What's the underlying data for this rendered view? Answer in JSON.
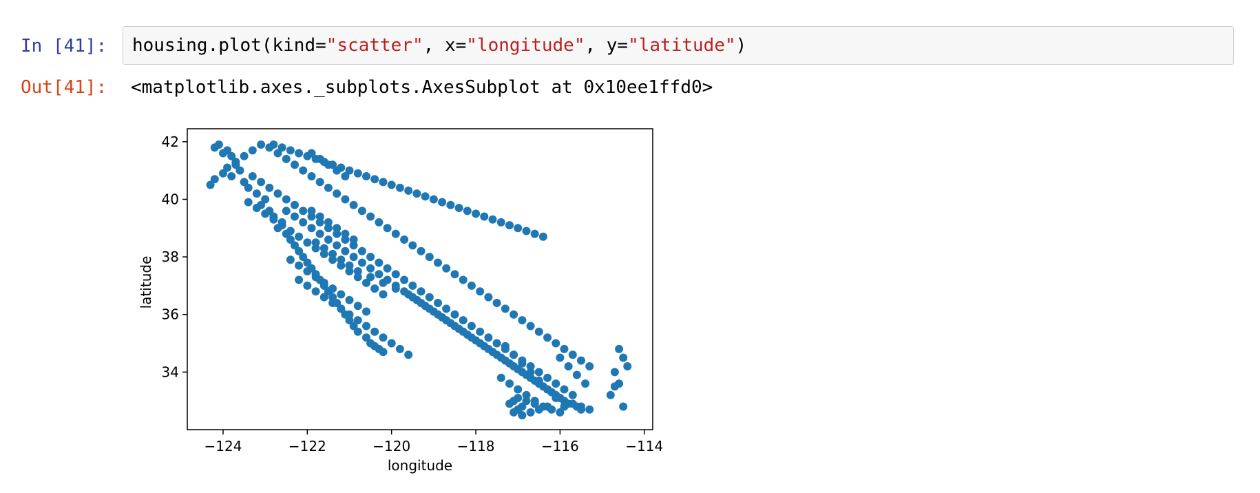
{
  "notebook": {
    "input_prompt": "In [41]:",
    "output_prompt": "Out[41]:",
    "code": {
      "p1": "housing.plot(kind=",
      "s1": "\"scatter\"",
      "p2": ", x=",
      "s2": "\"longitude\"",
      "p3": ", y=",
      "s3": "\"latitude\"",
      "p4": ")"
    },
    "output_text": "<matplotlib.axes._subplots.AxesSubplot at 0x10ee1ffd0>"
  },
  "colors": {
    "marker": "#1f77b4",
    "input_prompt": "#303f9f",
    "output_prompt": "#d84315",
    "string": "#ba2121"
  },
  "chart_data": {
    "type": "scatter",
    "title": "",
    "xlabel": "longitude",
    "ylabel": "latitude",
    "xlim": [
      -124.85,
      -113.8
    ],
    "ylim": [
      32.0,
      42.45
    ],
    "xticks": [
      -124,
      -122,
      -120,
      -118,
      -116,
      -114
    ],
    "yticks": [
      34,
      36,
      38,
      40,
      42
    ],
    "xtick_labels": [
      "−124",
      "−122",
      "−120",
      "−118",
      "−116",
      "−114"
    ],
    "ytick_labels": [
      "34",
      "36",
      "38",
      "40",
      "42"
    ],
    "grid": false,
    "legend": "none",
    "series": [
      {
        "x": [
          -124.2,
          -124.1,
          -123.9,
          -123.8,
          -124.0,
          -123.7,
          -123.6,
          -123.8,
          -123.5,
          -123.4,
          -123.2,
          -123.0,
          -123.1,
          -122.9,
          -122.8,
          -122.6,
          -122.7,
          -122.5,
          -122.4,
          -122.3,
          -122.2,
          -122.1,
          -122.0,
          -121.9,
          -121.8,
          -121.7,
          -121.6,
          -121.5,
          -121.4,
          -121.3,
          -121.2,
          -121.1,
          -121.0,
          -120.9,
          -120.8,
          -120.6,
          -120.5,
          -120.4,
          -120.3,
          -120.2,
          -121.8,
          -121.6,
          -121.4,
          -121.2,
          -121.0,
          -120.8,
          -120.5,
          -120.2,
          -119.9,
          -119.6,
          -119.4,
          -119.2,
          -119.0,
          -118.8,
          -118.6,
          -118.4,
          -118.2,
          -118.0,
          -117.8,
          -117.6,
          -117.4,
          -117.2,
          -117.0,
          -116.8,
          -116.6,
          -116.4,
          -116.2,
          -116.0,
          -115.8,
          -115.6,
          -115.5,
          -122.5,
          -122.3,
          -122.1,
          -121.9,
          -121.7,
          -121.5,
          -121.3,
          -121.1,
          -120.9,
          -120.7,
          -120.5,
          -120.3,
          -120.1,
          -119.9,
          -119.7,
          -119.5,
          -119.3,
          -119.1,
          -118.9,
          -118.7,
          -118.5,
          -118.3,
          -118.1,
          -117.9,
          -117.7,
          -117.5,
          -117.3,
          -117.1,
          -116.9,
          -116.7,
          -116.5,
          -116.3,
          -116.1,
          -115.9,
          -115.7,
          -115.5,
          -115.3,
          -114.6,
          -114.5,
          -114.7,
          -114.4,
          -114.6,
          -114.8,
          -114.5,
          -114.7,
          -123.3,
          -123.1,
          -122.9,
          -122.7,
          -122.5,
          -122.3,
          -122.1,
          -121.9,
          -121.7,
          -121.5,
          -121.3,
          -121.1,
          -120.9,
          -120.7,
          -120.5,
          -120.3,
          -120.1,
          -119.9,
          -119.7,
          -119.5,
          -119.3,
          -119.1,
          -118.9,
          -118.7,
          -118.5,
          -118.3,
          -118.1,
          -117.9,
          -117.7,
          -117.5,
          -117.3,
          -117.1,
          -116.9,
          -116.7,
          -116.5,
          -116.3,
          -116.1,
          -115.9,
          -115.7,
          -117.1,
          -117.0,
          -116.9,
          -117.2,
          -117.1,
          -117.0,
          -116.8,
          -116.6,
          -116.4,
          -116.2,
          -116.0,
          -122.8,
          -122.6,
          -122.4,
          -122.2,
          -122.0,
          -121.8,
          -121.6,
          -121.4,
          -121.2,
          -121.0,
          -120.8,
          -120.6,
          -120.4,
          -120.2,
          -120.0,
          -119.8,
          -119.6,
          -119.4,
          -119.2,
          -119.0,
          -118.8,
          -118.6,
          -118.4,
          -118.2,
          -118.0,
          -117.8,
          -117.6,
          -117.4,
          -117.2,
          -117.0,
          -116.8,
          -116.6,
          -116.4,
          -121.9,
          -121.7,
          -121.5,
          -121.3,
          -121.1,
          -121.9,
          -121.7,
          -121.5,
          -121.3,
          -121.1,
          -120.9,
          -122.4,
          -122.2,
          -122.0,
          -121.8,
          -121.6,
          -121.4,
          -121.2,
          -121.0,
          -120.8,
          -120.6,
          -122.2,
          -122.0,
          -121.8,
          -121.6,
          -121.4,
          -121.2,
          -121.0,
          -120.8,
          -120.6,
          -120.4,
          -120.2,
          -120.0,
          -119.8,
          -119.6,
          -123.4,
          -123.2,
          -123.0,
          -122.8,
          -122.6,
          -122.4,
          -122.2,
          -122.0,
          -121.8,
          -121.6,
          -121.4,
          -121.2,
          -121.0,
          -120.8,
          -120.6,
          -120.4,
          -120.2,
          -124.3,
          -124.2,
          -124.0,
          -123.9,
          -123.7,
          -123.5,
          -123.3,
          -123.1,
          -122.9,
          -122.7,
          -122.5,
          -122.3,
          -122.1,
          -121.9,
          -121.7,
          -121.5,
          -121.3,
          -121.1,
          -120.9,
          -120.7,
          -120.5,
          -120.3,
          -120.1,
          -119.9,
          -119.7,
          -119.5,
          -119.3,
          -119.1,
          -118.9,
          -118.7,
          -118.5,
          -118.3,
          -118.1,
          -117.9,
          -117.7,
          -117.5,
          -117.3,
          -117.1,
          -116.9,
          -116.7,
          -116.5,
          -116.3,
          -116.1,
          -115.9,
          -115.7,
          -115.5,
          -115.3,
          -117.4,
          -117.2,
          -117.0,
          -116.8,
          -116.6,
          -117.3,
          -117.1,
          -116.9,
          -116.7,
          -116.5,
          -116.3,
          -116.1,
          -115.9,
          -116.0,
          -115.8,
          -115.6,
          -115.4,
          -116.9,
          -116.7,
          -116.5,
          -116.3
        ],
        "y": [
          41.8,
          41.9,
          41.7,
          41.5,
          41.6,
          41.2,
          41.0,
          40.8,
          40.6,
          40.4,
          40.2,
          40.0,
          39.8,
          39.6,
          39.4,
          39.2,
          39.0,
          38.8,
          38.6,
          38.4,
          38.2,
          38.0,
          37.8,
          37.6,
          37.4,
          37.2,
          37.0,
          36.8,
          36.6,
          36.4,
          36.2,
          36.0,
          35.8,
          35.6,
          35.4,
          35.2,
          35.0,
          34.9,
          34.8,
          34.7,
          38.5,
          38.3,
          38.1,
          37.9,
          37.7,
          37.5,
          37.3,
          37.1,
          36.9,
          36.7,
          36.5,
          36.3,
          36.1,
          35.9,
          35.7,
          35.5,
          35.3,
          35.1,
          34.9,
          34.7,
          34.5,
          34.3,
          34.1,
          33.9,
          33.7,
          33.5,
          33.3,
          33.1,
          32.9,
          32.8,
          32.7,
          39.6,
          39.4,
          39.2,
          39.0,
          38.8,
          38.6,
          38.4,
          38.2,
          38.0,
          37.8,
          37.6,
          37.4,
          37.2,
          37.0,
          36.8,
          36.6,
          36.4,
          36.2,
          36.0,
          35.8,
          35.6,
          35.4,
          35.2,
          35.0,
          34.8,
          34.6,
          34.4,
          34.2,
          34.0,
          33.8,
          33.6,
          33.4,
          33.2,
          33.0,
          32.9,
          32.8,
          32.7,
          34.8,
          34.5,
          34.0,
          34.2,
          33.6,
          33.2,
          32.8,
          33.5,
          40.8,
          40.6,
          40.4,
          40.2,
          40.0,
          39.8,
          39.6,
          39.4,
          39.2,
          39.0,
          38.8,
          38.6,
          38.4,
          38.2,
          38.0,
          37.8,
          37.6,
          37.4,
          37.2,
          37.0,
          36.8,
          36.6,
          36.4,
          36.2,
          36.0,
          35.8,
          35.6,
          35.4,
          35.2,
          35.0,
          34.8,
          34.6,
          34.4,
          34.2,
          34.0,
          33.8,
          33.6,
          33.4,
          33.2,
          32.6,
          32.7,
          32.8,
          32.9,
          33.0,
          33.1,
          33.0,
          32.9,
          32.8,
          32.7,
          32.6,
          41.9,
          41.8,
          41.7,
          41.6,
          41.5,
          41.4,
          41.3,
          41.2,
          41.1,
          41.0,
          40.9,
          40.8,
          40.7,
          40.6,
          40.5,
          40.4,
          40.3,
          40.2,
          40.1,
          40.0,
          39.9,
          39.8,
          39.7,
          39.6,
          39.5,
          39.4,
          39.3,
          39.2,
          39.1,
          39.0,
          38.9,
          38.8,
          38.7,
          41.6,
          41.4,
          41.2,
          41.0,
          40.8,
          39.6,
          39.4,
          39.2,
          39.0,
          38.8,
          38.6,
          37.9,
          37.7,
          37.5,
          37.3,
          37.1,
          36.9,
          36.7,
          36.5,
          36.3,
          36.1,
          37.2,
          37.0,
          36.8,
          36.6,
          36.4,
          36.2,
          36.0,
          35.8,
          35.6,
          35.4,
          35.2,
          35.0,
          34.8,
          34.6,
          39.9,
          39.7,
          39.5,
          39.3,
          39.1,
          38.9,
          38.7,
          38.5,
          38.3,
          38.1,
          37.9,
          37.7,
          37.5,
          37.3,
          37.1,
          36.9,
          36.7,
          40.5,
          40.7,
          40.9,
          41.1,
          41.3,
          41.5,
          41.7,
          41.9,
          41.8,
          41.6,
          41.4,
          41.2,
          41.0,
          40.8,
          40.6,
          40.4,
          40.2,
          40.0,
          39.8,
          39.6,
          39.4,
          39.2,
          39.0,
          38.8,
          38.6,
          38.4,
          38.2,
          38.0,
          37.8,
          37.6,
          37.4,
          37.2,
          37.0,
          36.8,
          36.6,
          36.4,
          36.2,
          36.0,
          35.8,
          35.6,
          35.4,
          35.2,
          35.0,
          34.8,
          34.6,
          34.4,
          34.2,
          33.8,
          33.6,
          33.4,
          33.2,
          33.0,
          34.9,
          34.6,
          34.3,
          34.0,
          33.7,
          33.4,
          33.1,
          32.8,
          34.5,
          34.2,
          33.9,
          33.6,
          32.5,
          32.6,
          32.7,
          32.8
        ]
      }
    ]
  }
}
